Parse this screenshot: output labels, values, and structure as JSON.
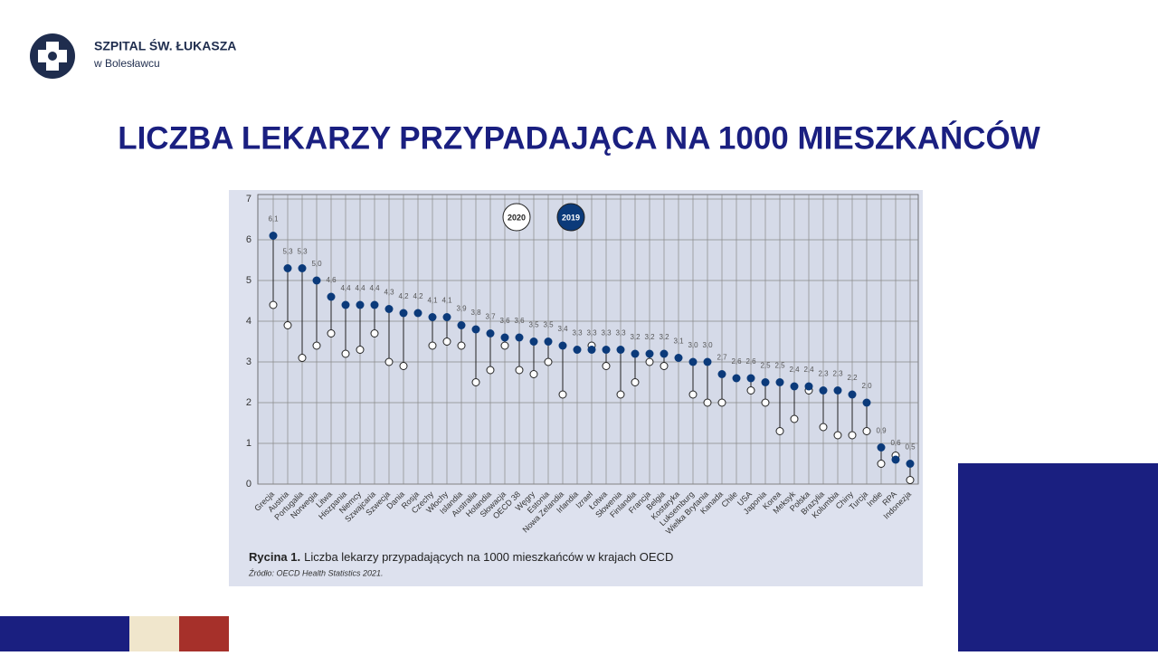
{
  "header": {
    "org": "SZPITAL ŚW. ŁUKASZA",
    "place": "w Bolesławcu"
  },
  "slide_title": "LICZBA LEKARZY PRZYPADAJĄCA NA 1000 MIESZKAŃCÓW",
  "chart_data": {
    "type": "dumbbell",
    "caption_label": "Rycina 1.",
    "caption": "Liczba lekarzy przypadających na 1000 mieszkańców w krajach OECD",
    "source": "Źródło: OECD Health Statistics 2021.",
    "categories": [
      "Grecja",
      "Austria",
      "Portugalia",
      "Norwegia",
      "Litwa",
      "Hiszpania",
      "Niemcy",
      "Szwajcaria",
      "Szwecja",
      "Dania",
      "Rosja",
      "Czechy",
      "Włochy",
      "Islandia",
      "Australia",
      "Holandia",
      "Słowacja",
      "OECD 38",
      "Węgry",
      "Estonia",
      "Nowa Zelandia",
      "Irlandia",
      "Izrael",
      "Łotwa",
      "Słowenia",
      "Finlandia",
      "Francja",
      "Belgia",
      "Kostaryka",
      "Luksemburg",
      "Wielka Brytania",
      "Kanada",
      "Chile",
      "USA",
      "Japonia",
      "Korea",
      "Meksyk",
      "Polska",
      "Brazylia",
      "Kolumbia",
      "Chiny",
      "Turcja",
      "Indie",
      "RPA",
      "Indonezja"
    ],
    "series": [
      {
        "name": "2020",
        "color": "#ffffff",
        "values": [
          4.4,
          3.9,
          3.1,
          3.4,
          3.7,
          3.2,
          3.3,
          3.7,
          3.0,
          2.9,
          null,
          3.4,
          3.5,
          3.4,
          2.5,
          2.8,
          3.4,
          2.8,
          2.7,
          3.0,
          2.2,
          null,
          3.4,
          2.9,
          2.2,
          2.5,
          3.0,
          2.9,
          null,
          2.2,
          2.0,
          2.0,
          null,
          2.3,
          2.0,
          1.3,
          1.6,
          2.3,
          1.4,
          1.2,
          1.2,
          1.3,
          0.5,
          0.7,
          0.1
        ]
      },
      {
        "name": "2019",
        "color": "#0b3a7a",
        "values": [
          6.1,
          5.3,
          5.3,
          5.0,
          4.6,
          4.4,
          4.4,
          4.4,
          4.3,
          4.2,
          4.2,
          4.1,
          4.1,
          3.9,
          3.8,
          3.7,
          3.6,
          3.6,
          3.5,
          3.5,
          3.4,
          3.3,
          3.3,
          3.3,
          3.3,
          3.2,
          3.2,
          3.2,
          3.1,
          3.0,
          3.0,
          2.7,
          2.6,
          2.6,
          2.5,
          2.5,
          2.4,
          2.4,
          2.3,
          2.3,
          2.2,
          2.0,
          0.9,
          0.6,
          0.5
        ],
        "value_labels": [
          "6,1",
          "5,3",
          "5,3",
          "5,0",
          "4,6",
          "4,4",
          "4,4",
          "4,4",
          "4,3",
          "4,2",
          "4,2",
          "4,1",
          "4,1",
          "3,9",
          "3,8",
          "3,7",
          "3,6",
          "3,6",
          "3,5",
          "3,5",
          "3,4",
          "3,3",
          "3,3",
          "3,3",
          "3,3",
          "3,2",
          "3,2",
          "3,2",
          "3,1",
          "3,0",
          "3,0",
          "2,7",
          "2,6",
          "2,6",
          "2,5",
          "2,5",
          "2,4",
          "2,4",
          "2,3",
          "2,3",
          "2,2",
          "2,0",
          "0,9",
          "0,6",
          "0,5"
        ]
      }
    ],
    "ylim": [
      0,
      7
    ],
    "yticks": [
      0,
      1,
      2,
      3,
      4,
      5,
      6,
      7
    ],
    "grid": true
  }
}
